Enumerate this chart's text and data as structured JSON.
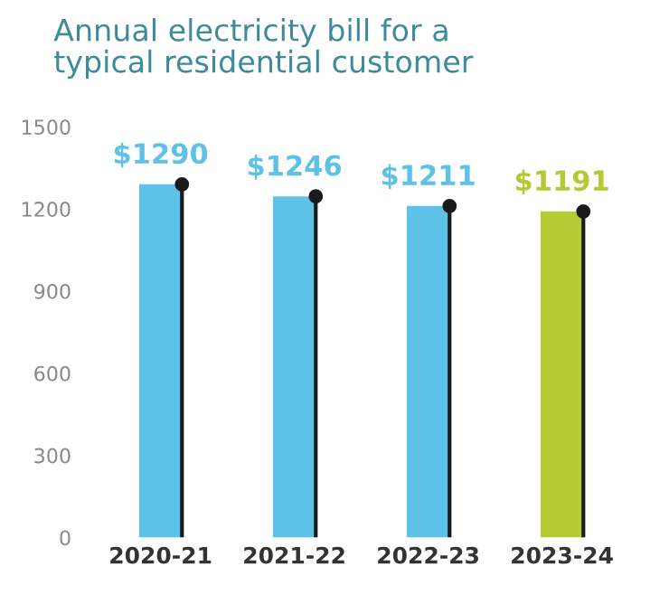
{
  "chart_data": {
    "type": "bar",
    "title": "Annual electricity bill for a\ntypical residential customer",
    "categories": [
      "2020-21",
      "2021-22",
      "2022-23",
      "2023-24"
    ],
    "series": [
      {
        "colors": [
          "#5ec1e8",
          "#5ec1e8",
          "#5ec1e8",
          "#b5c934"
        ],
        "values": [
          1290,
          1246,
          1211,
          1191
        ],
        "value_labels": [
          "$1290",
          "$1246",
          "$1211",
          "$1191"
        ]
      },
      {
        "type": "lollipop",
        "color": "#1a1a1a",
        "values": [
          1290,
          1246,
          1211,
          1191
        ]
      }
    ],
    "ylim": [
      0,
      1500
    ],
    "yticks": [
      0,
      300,
      600,
      900,
      1200,
      1500
    ],
    "grid": false,
    "legend": false
  }
}
